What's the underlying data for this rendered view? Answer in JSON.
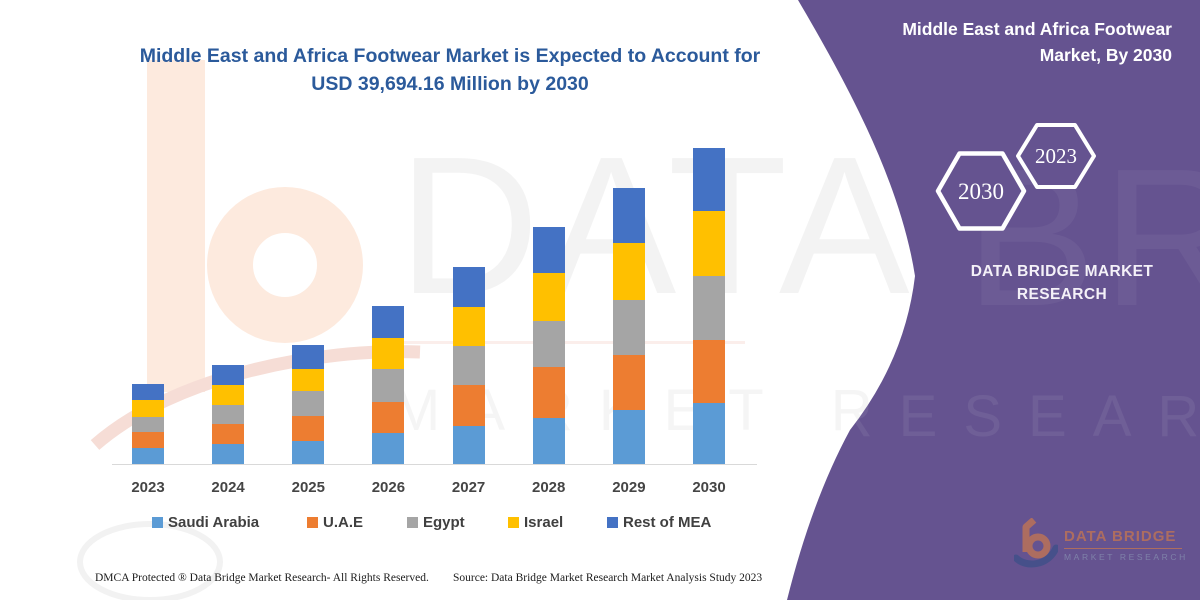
{
  "chart": {
    "title_line1": "Middle East and Africa Footwear Market is Expected to Account for",
    "title_line2": "USD 39,694.16 Million by 2030",
    "title_color": "#2b5a9b"
  },
  "chart_data": {
    "type": "bar",
    "stacked": true,
    "title": "Middle East and Africa Footwear Market is Expected to Account for USD 39,694.16 Million by 2030",
    "value_unit": "USD Million",
    "categories": [
      "2023",
      "2024",
      "2025",
      "2026",
      "2027",
      "2028",
      "2029",
      "2030"
    ],
    "series": [
      {
        "name": "Saudi Arabia",
        "color": "#5B9BD5",
        "values": [
          2010,
          2515,
          2855,
          3900,
          4740,
          5745,
          6790,
          7630
        ]
      },
      {
        "name": "U.A.E",
        "color": "#ED7D31",
        "values": [
          1975,
          2515,
          3145,
          3935,
          5190,
          6410,
          6915,
          7960
        ]
      },
      {
        "name": "Egypt",
        "color": "#A5A5A5",
        "values": [
          1925,
          2425,
          3145,
          4110,
          4865,
          5785,
          6915,
          8045
        ]
      },
      {
        "name": "Israel",
        "color": "#FFC000",
        "values": [
          2175,
          2515,
          2805,
          3900,
          4905,
          6075,
          7130,
          8175
        ]
      },
      {
        "name": "Rest of MEA",
        "color": "#4472C4",
        "values": [
          1975,
          2425,
          3055,
          4060,
          5065,
          5785,
          6915,
          7884.16
        ]
      }
    ],
    "totals_shown": {
      "2030": 39694.16
    },
    "ylim": [
      0,
      40000
    ],
    "grid": false,
    "legend_position": "bottom"
  },
  "panel": {
    "color": "#655390",
    "title_line1": "Middle East and Africa Footwear",
    "title_line2": "Market, By 2030",
    "hexagon_large_year": "2030",
    "hexagon_small_year": "2023",
    "brand_line1": "DATA BRIDGE MARKET",
    "brand_line2": "RESEARCH",
    "logo_line1": "DATA BRIDGE",
    "logo_line2": "MARKET RESEARCH"
  },
  "watermark": {
    "big": "DATA BRIDGE",
    "sub": "MARKET RESEARCH"
  },
  "footer": {
    "dmca": "DMCA Protected ® Data Bridge Market Research-  All Rights Reserved.",
    "source": "Source: Data Bridge Market Research  Market Analysis Study 2023"
  }
}
